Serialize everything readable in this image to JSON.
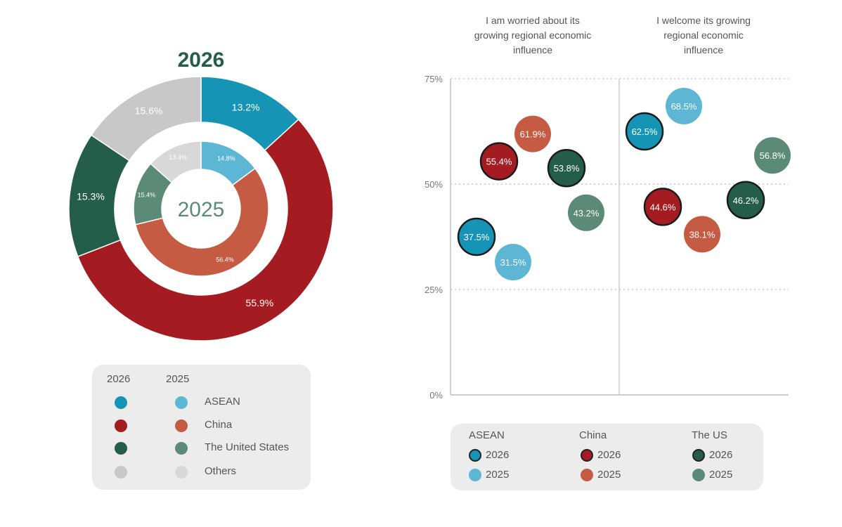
{
  "chart_data": [
    {
      "type": "pie",
      "subtype": "nested-donut",
      "title": "",
      "outer_label": "2026",
      "inner_label": "2025",
      "categories": [
        "ASEAN",
        "China",
        "The United States",
        "Others"
      ],
      "series": [
        {
          "name": "2026",
          "values": [
            13.2,
            55.9,
            15.3,
            15.6
          ],
          "labels": [
            "13.2%",
            "55.9%",
            "15.3%",
            "15.6%"
          ]
        },
        {
          "name": "2025",
          "values": [
            14.8,
            56.4,
            15.4,
            13.4
          ],
          "labels": [
            "14.8%",
            "56.4%",
            "15.4%",
            "13.4%"
          ]
        }
      ],
      "colors_2026": [
        "#1694b6",
        "#a41b21",
        "#245e4b",
        "#c8c8c8"
      ],
      "colors_2025": [
        "#5db6d4",
        "#c45b42",
        "#5b8a77",
        "#d8d8d8"
      ],
      "legend": {
        "headers": [
          "2026",
          "2025"
        ],
        "entries": [
          "ASEAN",
          "China",
          "The United States",
          "Others"
        ],
        "placement": "bottom"
      }
    },
    {
      "type": "scatter",
      "title": "",
      "x_categories": [
        "I am worried about its growing regional economic influence",
        "I welcome its growing regional economic influence"
      ],
      "x_category_lines": [
        [
          "I am worried about its",
          "growing regional economic",
          "influence"
        ],
        [
          "I welcome its growing",
          "regional economic",
          "influence"
        ]
      ],
      "ylim": [
        0,
        75
      ],
      "yticks": [
        0,
        25,
        50,
        75
      ],
      "ytick_labels": [
        "0%",
        "25%",
        "50%",
        "75%"
      ],
      "grid": true,
      "series": [
        {
          "group": "ASEAN",
          "year": "2026",
          "color": "#1694b6",
          "category": 0,
          "y": 37.5,
          "label": "37.5%"
        },
        {
          "group": "ASEAN",
          "year": "2025",
          "color": "#5db6d4",
          "category": 0,
          "y": 31.5,
          "label": "31.5%"
        },
        {
          "group": "China",
          "year": "2026",
          "color": "#a41b21",
          "category": 0,
          "y": 55.4,
          "label": "55.4%"
        },
        {
          "group": "China",
          "year": "2025",
          "color": "#c45b42",
          "category": 0,
          "y": 61.9,
          "label": "61.9%"
        },
        {
          "group": "The US",
          "year": "2026",
          "color": "#245e4b",
          "category": 0,
          "y": 53.8,
          "label": "53.8%"
        },
        {
          "group": "The US",
          "year": "2025",
          "color": "#5b8a77",
          "category": 0,
          "y": 43.2,
          "label": "43.2%"
        },
        {
          "group": "ASEAN",
          "year": "2026",
          "color": "#1694b6",
          "category": 1,
          "y": 62.5,
          "label": "62.5%"
        },
        {
          "group": "ASEAN",
          "year": "2025",
          "color": "#5db6d4",
          "category": 1,
          "y": 68.5,
          "label": "68.5%"
        },
        {
          "group": "China",
          "year": "2026",
          "color": "#a41b21",
          "category": 1,
          "y": 44.6,
          "label": "44.6%"
        },
        {
          "group": "China",
          "year": "2025",
          "color": "#c45b42",
          "category": 1,
          "y": 38.1,
          "label": "38.1%"
        },
        {
          "group": "The US",
          "year": "2026",
          "color": "#245e4b",
          "category": 1,
          "y": 46.2,
          "label": "46.2%"
        },
        {
          "group": "The US",
          "year": "2025",
          "color": "#5b8a77",
          "category": 1,
          "y": 56.8,
          "label": "56.8%"
        }
      ],
      "legend": {
        "groups": [
          {
            "name": "ASEAN",
            "entries": [
              {
                "year": "2026",
                "color": "#1694b6"
              },
              {
                "year": "2025",
                "color": "#5db6d4"
              }
            ]
          },
          {
            "name": "China",
            "entries": [
              {
                "year": "2026",
                "color": "#a41b21"
              },
              {
                "year": "2025",
                "color": "#c45b42"
              }
            ]
          },
          {
            "name": "The US",
            "entries": [
              {
                "year": "2026",
                "color": "#245e4b"
              },
              {
                "year": "2025",
                "color": "#5b8a77"
              }
            ]
          }
        ],
        "placement": "bottom"
      }
    }
  ]
}
